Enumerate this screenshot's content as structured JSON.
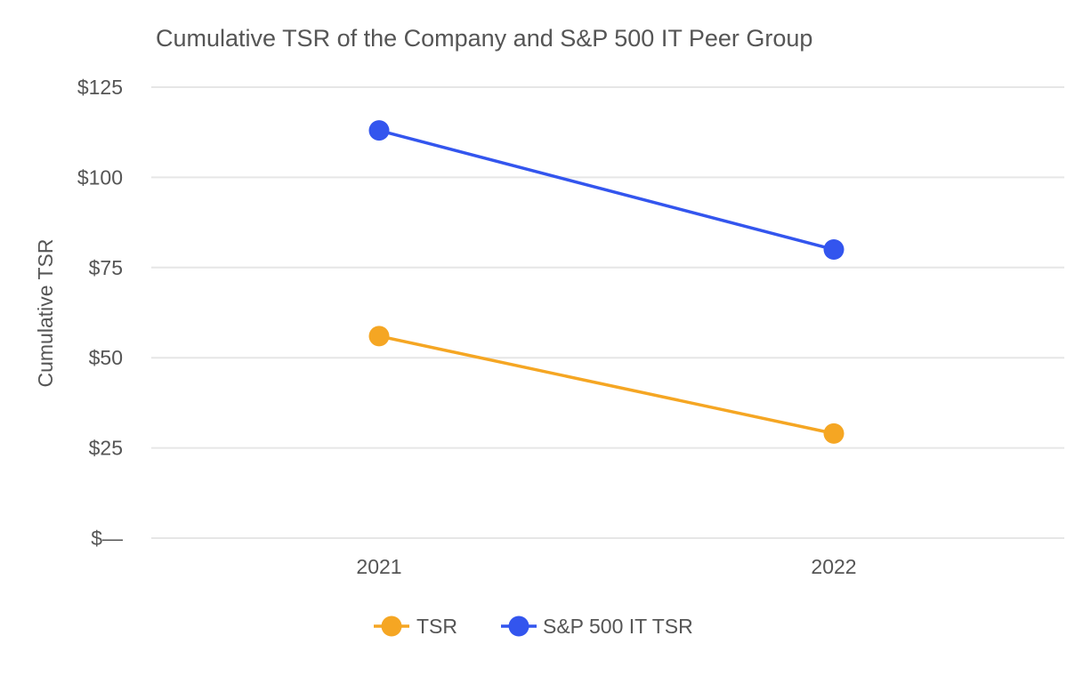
{
  "chart_data": {
    "type": "line",
    "title": "Cumulative TSR of the Company and S&P 500 IT Peer Group",
    "xlabel": "",
    "ylabel": "Cumulative TSR",
    "categories": [
      "2021",
      "2022"
    ],
    "ylim": [
      0,
      125
    ],
    "yticks": [
      0,
      25,
      50,
      75,
      100,
      125
    ],
    "ytick_labels": [
      "$—",
      "$25",
      "$50",
      "$75",
      "$100",
      "$125"
    ],
    "grid": true,
    "legend_position": "bottom-center",
    "series": [
      {
        "name": "TSR",
        "values": [
          56,
          29
        ],
        "color": "#f5a623"
      },
      {
        "name": "S&P 500 IT TSR",
        "values": [
          113,
          80
        ],
        "color": "#3355ee"
      }
    ]
  }
}
